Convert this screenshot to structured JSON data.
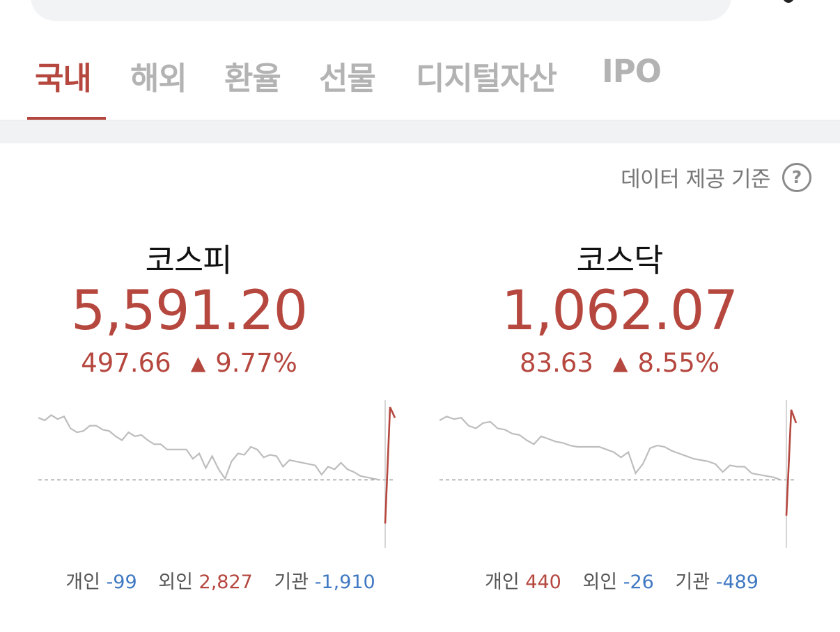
{
  "tabs": [
    {
      "label": "국내",
      "active": true
    },
    {
      "label": "해외",
      "active": false
    },
    {
      "label": "환율",
      "active": false
    },
    {
      "label": "선물",
      "active": false
    },
    {
      "label": "디지털자산",
      "active": false
    },
    {
      "label": "IPO",
      "active": false
    }
  ],
  "data_basis": "데이터 제공 기준",
  "help_icon_glyph": "?",
  "colors": {
    "accent_red": "#b5473f",
    "negative_blue": "#3f78c2",
    "line_gray": "#bdbdbd"
  },
  "markets": [
    {
      "name": "코스피",
      "value": "5,591.20",
      "change": "497.66",
      "arrow": "▲",
      "change_pct": "9.77%",
      "investors": {
        "individual_label": "개인",
        "individual": "-99",
        "foreign_label": "외인",
        "foreign": "2,827",
        "institution_label": "기관",
        "institution": "-1,910"
      }
    },
    {
      "name": "코스닥",
      "value": "1,062.07",
      "change": "83.63",
      "arrow": "▲",
      "change_pct": "8.55%",
      "investors": {
        "individual_label": "개인",
        "individual": "440",
        "foreign_label": "외인",
        "foreign": "-26",
        "institution_label": "기관",
        "institution": "-489"
      }
    }
  ],
  "chart_data": [
    {
      "type": "line",
      "series": [
        {
          "values": [
            92,
            90,
            94,
            91,
            93,
            84,
            81,
            82,
            86,
            86,
            83,
            82,
            78,
            75,
            81,
            78,
            79,
            75,
            72,
            72,
            68,
            68,
            68,
            68,
            61,
            65,
            54,
            63,
            53,
            46,
            59,
            65,
            64,
            70,
            68,
            62,
            64,
            63,
            55,
            60,
            59,
            58,
            57,
            56,
            49,
            55,
            53,
            58,
            53,
            51,
            48,
            47,
            46,
            45
          ]
        },
        {
          "values": [
            12,
            100,
            92
          ]
        }
      ]
    },
    {
      "type": "line",
      "series": [
        {
          "values": [
            90,
            93,
            91,
            92,
            86,
            84,
            88,
            89,
            84,
            83,
            80,
            79,
            75,
            72,
            78,
            76,
            74,
            73,
            71,
            70,
            70,
            70,
            70,
            68,
            66,
            62,
            66,
            50,
            57,
            69,
            71,
            70,
            67,
            65,
            63,
            61,
            60,
            59,
            57,
            51,
            56,
            55,
            55,
            50,
            49,
            48,
            47,
            45
          ]
        },
        {
          "values": [
            18,
            98,
            88
          ]
        }
      ]
    }
  ]
}
